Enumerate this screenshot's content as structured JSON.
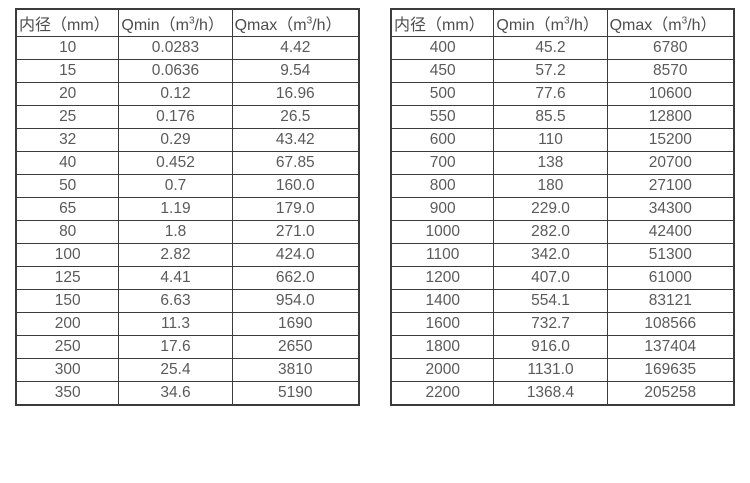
{
  "page": {
    "background_color": "#ffffff",
    "border_color": "#3b3b3b",
    "text_color": "#5a5a5a"
  },
  "tables": [
    {
      "name": "small-diameter-flow-table",
      "headers": {
        "diameter": "内径（mm）",
        "qmin": {
          "pre": "Qmin（m",
          "sup": "3",
          "post": "/h）"
        },
        "qmax": {
          "pre": "Qmax（m",
          "sup": "3",
          "post": "/h）"
        }
      },
      "rows": [
        [
          "10",
          "0.0283",
          "4.42"
        ],
        [
          "15",
          "0.0636",
          "9.54"
        ],
        [
          "20",
          "0.12",
          "16.96"
        ],
        [
          "25",
          "0.176",
          "26.5"
        ],
        [
          "32",
          "0.29",
          "43.42"
        ],
        [
          "40",
          "0.452",
          "67.85"
        ],
        [
          "50",
          "0.7",
          "160.0"
        ],
        [
          "65",
          "1.19",
          "179.0"
        ],
        [
          "80",
          "1.8",
          "271.0"
        ],
        [
          "100",
          "2.82",
          "424.0"
        ],
        [
          "125",
          "4.41",
          "662.0"
        ],
        [
          "150",
          "6.63",
          "954.0"
        ],
        [
          "200",
          "11.3",
          "1690"
        ],
        [
          "250",
          "17.6",
          "2650"
        ],
        [
          "300",
          "25.4",
          "3810"
        ],
        [
          "350",
          "34.6",
          "5190"
        ]
      ]
    },
    {
      "name": "large-diameter-flow-table",
      "headers": {
        "diameter": "内径（mm）",
        "qmin": {
          "pre": "Qmin（m",
          "sup": "3",
          "post": "/h）"
        },
        "qmax": {
          "pre": "Qmax（m",
          "sup": "3",
          "post": "/h）"
        }
      },
      "rows": [
        [
          "400",
          "45.2",
          "6780"
        ],
        [
          "450",
          "57.2",
          "8570"
        ],
        [
          "500",
          "77.6",
          "10600"
        ],
        [
          "550",
          "85.5",
          "12800"
        ],
        [
          "600",
          "110",
          "15200"
        ],
        [
          "700",
          "138",
          "20700"
        ],
        [
          "800",
          "180",
          "27100"
        ],
        [
          "900",
          "229.0",
          "34300"
        ],
        [
          "1000",
          "282.0",
          "42400"
        ],
        [
          "1100",
          "342.0",
          "51300"
        ],
        [
          "1200",
          "407.0",
          "61000"
        ],
        [
          "1400",
          "554.1",
          "83121"
        ],
        [
          "1600",
          "732.7",
          "108566"
        ],
        [
          "1800",
          "916.0",
          "137404"
        ],
        [
          "2000",
          "1131.0",
          "169635"
        ],
        [
          "2200",
          "1368.4",
          "205258"
        ]
      ]
    }
  ]
}
